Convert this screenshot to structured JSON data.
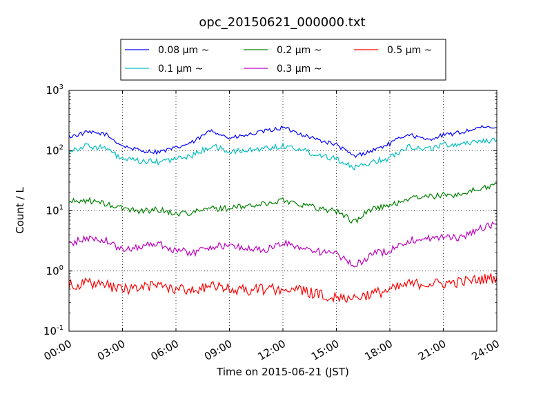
{
  "chart_data": {
    "type": "line",
    "title": "opc_20150621_000000.txt",
    "xlabel": "Time on 2015-06-21 (JST)",
    "ylabel": "Count / L",
    "yscale": "log",
    "ylim": [
      0.1,
      1000
    ],
    "xlim": [
      "2015-06-21 00:00",
      "2015-06-22 00:00"
    ],
    "x_ticks": [
      "00:00",
      "03:00",
      "06:00",
      "09:00",
      "12:00",
      "15:00",
      "18:00",
      "21:00",
      "24:00"
    ],
    "y_ticks": [
      {
        "base": "10",
        "exp": "-1"
      },
      {
        "base": "10",
        "exp": "0"
      },
      {
        "base": "10",
        "exp": "1"
      },
      {
        "base": "10",
        "exp": "2"
      },
      {
        "base": "10",
        "exp": "3"
      }
    ],
    "grid": true,
    "legend_position": "top-center",
    "x": [
      "00:00",
      "01:00",
      "02:00",
      "03:00",
      "04:00",
      "05:00",
      "06:00",
      "07:00",
      "08:00",
      "09:00",
      "10:00",
      "11:00",
      "12:00",
      "13:00",
      "14:00",
      "15:00",
      "16:00",
      "17:00",
      "18:00",
      "19:00",
      "20:00",
      "21:00",
      "22:00",
      "23:00",
      "24:00"
    ],
    "series": [
      {
        "name": "0.08 μm ~",
        "color": "#0000ff",
        "values": [
          170,
          200,
          190,
          120,
          100,
          95,
          110,
          140,
          220,
          160,
          180,
          210,
          240,
          190,
          150,
          125,
          80,
          100,
          130,
          190,
          150,
          180,
          200,
          240,
          240
        ]
      },
      {
        "name": "0.1 μm ~",
        "color": "#00bfbf",
        "values": [
          100,
          120,
          110,
          72,
          66,
          65,
          72,
          85,
          120,
          95,
          100,
          110,
          120,
          105,
          85,
          75,
          50,
          65,
          75,
          120,
          105,
          125,
          130,
          145,
          150
        ]
      },
      {
        "name": "0.2 μm ~",
        "color": "#008000",
        "values": [
          14,
          15,
          13,
          11,
          10,
          10.5,
          9,
          9.5,
          11,
          11,
          12,
          13,
          15,
          13,
          11,
          10,
          6.5,
          11,
          12,
          16,
          17,
          18,
          19,
          23,
          28
        ]
      },
      {
        "name": "0.3 μm ~",
        "color": "#bf00bf",
        "values": [
          2.8,
          3.5,
          3.3,
          2.2,
          2.6,
          2.9,
          2.2,
          2.0,
          2.6,
          2.6,
          2.4,
          2.2,
          2.9,
          2.5,
          2.1,
          1.9,
          1.2,
          1.9,
          2.2,
          3.2,
          3.5,
          3.6,
          3.6,
          5.0,
          6.0
        ]
      },
      {
        "name": "0.5 μm ~",
        "color": "#ff0000",
        "values": [
          0.6,
          0.62,
          0.58,
          0.5,
          0.52,
          0.6,
          0.5,
          0.5,
          0.55,
          0.5,
          0.48,
          0.5,
          0.5,
          0.48,
          0.4,
          0.38,
          0.36,
          0.42,
          0.48,
          0.6,
          0.62,
          0.62,
          0.66,
          0.72,
          0.78
        ]
      }
    ]
  }
}
